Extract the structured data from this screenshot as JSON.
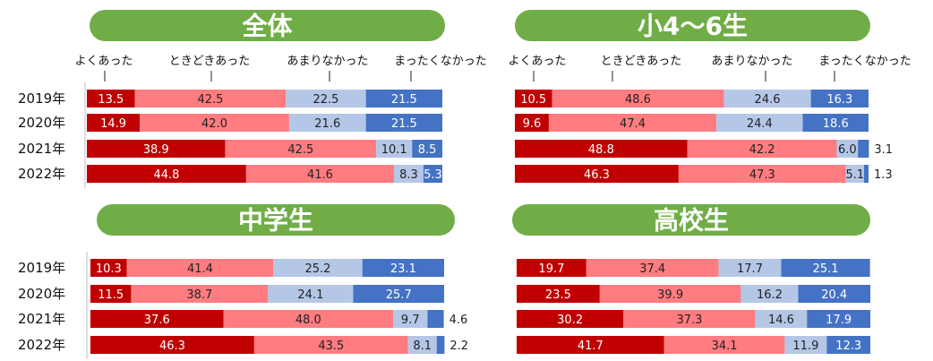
{
  "chart_data": [
    {
      "type": "bar",
      "stacked": true,
      "orientation": "horizontal",
      "title": "全体",
      "categories": [
        "2019年",
        "2020年",
        "2021年",
        "2022年"
      ],
      "series": [
        {
          "name": "よくあった",
          "values": [
            13.5,
            14.9,
            38.9,
            44.8
          ]
        },
        {
          "name": "ときどきあった",
          "values": [
            42.5,
            42.0,
            42.5,
            41.6
          ]
        },
        {
          "name": "あまりなかった",
          "values": [
            22.5,
            21.6,
            10.1,
            8.3
          ]
        },
        {
          "name": "まったくなかった",
          "values": [
            21.5,
            21.5,
            8.5,
            5.3
          ]
        }
      ],
      "value_labels": [
        [
          "13.5",
          "42.5",
          "22.5",
          "21.5"
        ],
        [
          "14.9",
          "42.0",
          "21.6",
          "21.5"
        ],
        [
          "38.9",
          "42.5",
          "10.1",
          "8.5"
        ],
        [
          "44.8",
          "41.6",
          "8.3",
          "5.3"
        ]
      ],
      "legend_position": "top",
      "xlim": [
        0,
        100
      ]
    },
    {
      "type": "bar",
      "stacked": true,
      "orientation": "horizontal",
      "title": "小4〜6生",
      "categories": [
        "2019年",
        "2020年",
        "2021年",
        "2022年"
      ],
      "series": [
        {
          "name": "よくあった",
          "values": [
            10.5,
            9.6,
            48.8,
            46.3
          ]
        },
        {
          "name": "ときどきあった",
          "values": [
            48.6,
            47.4,
            42.2,
            47.3
          ]
        },
        {
          "name": "あまりなかった",
          "values": [
            24.6,
            24.4,
            6.0,
            5.1
          ]
        },
        {
          "name": "まったくなかった",
          "values": [
            16.3,
            18.6,
            3.1,
            1.3
          ]
        }
      ],
      "value_labels": [
        [
          "10.5",
          "48.6",
          "24.6",
          "16.3"
        ],
        [
          "9.6",
          "47.4",
          "24.4",
          "18.6"
        ],
        [
          "48.8",
          "42.2",
          "6.0",
          "3.1"
        ],
        [
          "46.3",
          "47.3",
          "5.1",
          "1.3"
        ]
      ],
      "legend_position": "top",
      "xlim": [
        0,
        100
      ]
    },
    {
      "type": "bar",
      "stacked": true,
      "orientation": "horizontal",
      "title": "中学生",
      "categories": [
        "2019年",
        "2020年",
        "2021年",
        "2022年"
      ],
      "series": [
        {
          "name": "よくあった",
          "values": [
            10.3,
            11.5,
            37.6,
            46.3
          ]
        },
        {
          "name": "ときどきあった",
          "values": [
            41.4,
            38.7,
            48.0,
            43.5
          ]
        },
        {
          "name": "あまりなかった",
          "values": [
            25.2,
            24.1,
            9.7,
            8.1
          ]
        },
        {
          "name": "まったくなかった",
          "values": [
            23.1,
            25.7,
            4.6,
            2.2
          ]
        }
      ],
      "value_labels": [
        [
          "10.3",
          "41.4",
          "25.2",
          "23.1"
        ],
        [
          "11.5",
          "38.7",
          "24.1",
          "25.7"
        ],
        [
          "37.6",
          "48.0",
          "9.7",
          "4.6"
        ],
        [
          "46.3",
          "43.5",
          "8.1",
          "2.2"
        ]
      ],
      "xlim": [
        0,
        100
      ]
    },
    {
      "type": "bar",
      "stacked": true,
      "orientation": "horizontal",
      "title": "高校生",
      "categories": [
        "2019年",
        "2020年",
        "2021年",
        "2022年"
      ],
      "series": [
        {
          "name": "よくあった",
          "values": [
            19.7,
            23.5,
            30.2,
            41.7
          ]
        },
        {
          "name": "ときどきあった",
          "values": [
            37.4,
            39.9,
            37.3,
            34.1
          ]
        },
        {
          "name": "あまりなかった",
          "values": [
            17.7,
            16.2,
            14.6,
            11.9
          ]
        },
        {
          "name": "まったくなかった",
          "values": [
            25.1,
            20.4,
            17.9,
            12.3
          ]
        }
      ],
      "value_labels": [
        [
          "19.7",
          "37.4",
          "17.7",
          "25.1"
        ],
        [
          "23.5",
          "39.9",
          "16.2",
          "20.4"
        ],
        [
          "30.2",
          "37.3",
          "14.6",
          "17.9"
        ],
        [
          "41.7",
          "34.1",
          "11.9",
          "12.3"
        ]
      ],
      "xlim": [
        0,
        100
      ]
    }
  ],
  "colors": {
    "title_pill": "#70ad47",
    "series": [
      "#c00000",
      "#ff7c80",
      "#b4c7e7",
      "#4472c4"
    ],
    "series_label_text": [
      "#ffffff",
      "#222222",
      "#222222",
      "#ffffff"
    ],
    "outside_label_text": "#222222",
    "axis_line": "#bfbfbf"
  }
}
